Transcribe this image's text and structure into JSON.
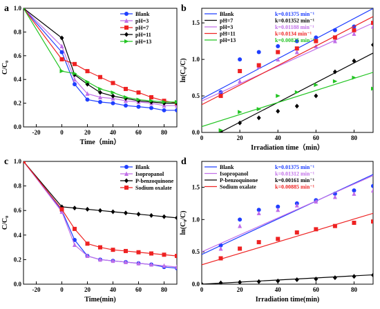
{
  "chart_data": [
    {
      "panel": "a",
      "type": "line",
      "xlabel": "Time（min）",
      "ylabel": "C/C₀",
      "xlim": [
        -30,
        90
      ],
      "ylim": [
        0,
        1.0
      ],
      "xticks": [
        -20,
        0,
        20,
        40,
        60,
        80
      ],
      "yticks": [
        0.0,
        0.2,
        0.4,
        0.6,
        0.8,
        1.0
      ],
      "xtick_labels": [
        "-20",
        "0",
        "20",
        "40",
        "60",
        "80"
      ],
      "ytick_labels": [
        "0.0",
        "0.2",
        "0.4",
        "0.6",
        "0.8",
        "1.0"
      ],
      "legend_position": "top-right",
      "series": [
        {
          "name": "Blank",
          "color": "#1f3fff",
          "marker": "circle",
          "x": [
            -30,
            0,
            10,
            20,
            30,
            40,
            50,
            60,
            70,
            80,
            90
          ],
          "y": [
            1.0,
            0.63,
            0.36,
            0.23,
            0.21,
            0.2,
            0.18,
            0.17,
            0.16,
            0.14,
            0.14
          ]
        },
        {
          "name": "pH=3",
          "color": "#c06ee8",
          "marker": "triangle",
          "x": [
            -30,
            0,
            10,
            20,
            30,
            40,
            50,
            60,
            70,
            80,
            90
          ],
          "y": [
            1.0,
            0.68,
            0.4,
            0.28,
            0.25,
            0.24,
            0.22,
            0.21,
            0.2,
            0.18,
            0.18
          ]
        },
        {
          "name": "pH=7",
          "color": "#ee2222",
          "marker": "square",
          "x": [
            -30,
            0,
            10,
            20,
            30,
            40,
            50,
            60,
            70,
            80,
            90
          ],
          "y": [
            1.0,
            0.57,
            0.53,
            0.47,
            0.42,
            0.37,
            0.32,
            0.29,
            0.25,
            0.22,
            0.2
          ]
        },
        {
          "name": "pH=11",
          "color": "#000000",
          "marker": "diamond",
          "x": [
            -30,
            0,
            10,
            20,
            30,
            40,
            50,
            60,
            70,
            80,
            90
          ],
          "y": [
            1.0,
            0.75,
            0.44,
            0.36,
            0.29,
            0.26,
            0.24,
            0.22,
            0.21,
            0.2,
            0.2
          ]
        },
        {
          "name": "pH=13",
          "color": "#22c422",
          "marker": "triangle-right",
          "x": [
            -30,
            0,
            10,
            20,
            30,
            40,
            50,
            60,
            70,
            80,
            90
          ],
          "y": [
            1.0,
            0.47,
            0.45,
            0.38,
            0.32,
            0.29,
            0.25,
            0.23,
            0.22,
            0.21,
            0.21
          ]
        }
      ]
    },
    {
      "panel": "b",
      "type": "scatter",
      "xlabel": "Irradiation time（min）",
      "ylabel": "ln(C₀/C)",
      "xlim": [
        0,
        90
      ],
      "ylim": [
        0,
        1.7
      ],
      "xticks": [
        0,
        20,
        40,
        60,
        80
      ],
      "yticks": [
        0.0,
        0.5,
        1.0,
        1.5
      ],
      "xtick_labels": [
        "0",
        "20",
        "40",
        "60",
        "80"
      ],
      "ytick_labels": [
        "0.0",
        "0.5",
        "1.0",
        "1.5"
      ],
      "legend_position": "top-left",
      "series": [
        {
          "name": "Blank",
          "color": "#1f3fff",
          "marker": "circle",
          "k_label": "k=0.01375 min⁻¹",
          "x": [
            10,
            20,
            30,
            40,
            50,
            60,
            70,
            80,
            90
          ],
          "y": [
            0.55,
            1.0,
            1.1,
            1.18,
            1.25,
            1.3,
            1.4,
            1.45,
            1.5
          ],
          "fit": [
            0.46,
            0.01375
          ]
        },
        {
          "name": "pH=7",
          "color": "#000000",
          "marker": "diamond",
          "k_label": "k=0.01352 min⁻¹",
          "x": [
            10,
            20,
            30,
            40,
            50,
            60,
            70,
            80,
            90
          ],
          "y": [
            0.01,
            0.13,
            0.2,
            0.29,
            0.36,
            0.5,
            0.83,
            0.98,
            1.2
          ],
          "fit": [
            -0.13,
            0.01352
          ]
        },
        {
          "name": "pH=3",
          "color": "#c06ee8",
          "marker": "triangle",
          "k_label": "k=0.01188 min⁻¹",
          "x": [
            10,
            20,
            30,
            40,
            50,
            60,
            70,
            80,
            90
          ],
          "y": [
            0.5,
            0.7,
            0.9,
            1.0,
            1.1,
            1.18,
            1.25,
            1.35,
            1.45
          ],
          "fit": [
            0.43,
            0.01188
          ]
        },
        {
          "name": "pH=11",
          "color": "#ee2222",
          "marker": "square",
          "k_label": "k=0.0134 min⁻¹",
          "x": [
            10,
            20,
            30,
            40,
            50,
            60,
            70,
            80,
            90
          ],
          "y": [
            0.5,
            0.84,
            0.92,
            1.1,
            1.15,
            1.25,
            1.3,
            1.4,
            1.5
          ],
          "fit": [
            0.38,
            0.0134
          ]
        },
        {
          "name": "pH=13",
          "color": "#22c422",
          "marker": "triangle-right",
          "k_label": "k=0.00825 min⁻¹",
          "x": [
            10,
            20,
            30,
            40,
            50,
            60,
            70,
            80,
            90
          ],
          "y": [
            0.03,
            0.28,
            0.32,
            0.5,
            0.55,
            0.65,
            0.7,
            0.75,
            0.6
          ],
          "fit": [
            0.08,
            0.00825
          ]
        }
      ]
    },
    {
      "panel": "c",
      "type": "line",
      "xlabel": "Time(min)",
      "ylabel": "C/C₀",
      "xlim": [
        -30,
        90
      ],
      "ylim": [
        0,
        1.0
      ],
      "xticks": [
        -20,
        0,
        20,
        40,
        60,
        80
      ],
      "yticks": [
        0.0,
        0.2,
        0.4,
        0.6,
        0.8,
        1.0
      ],
      "xtick_labels": [
        "-20",
        "0",
        "20",
        "40",
        "60",
        "80"
      ],
      "ytick_labels": [
        "0.0",
        "0.2",
        "0.4",
        "0.6",
        "0.8",
        "1.0"
      ],
      "legend_position": "top-right",
      "series": [
        {
          "name": "Blank",
          "color": "#1f3fff",
          "marker": "circle",
          "x": [
            -30,
            0,
            10,
            20,
            30,
            40,
            50,
            60,
            70,
            80,
            90
          ],
          "y": [
            1.0,
            0.6,
            0.36,
            0.23,
            0.2,
            0.19,
            0.18,
            0.17,
            0.16,
            0.14,
            0.13
          ]
        },
        {
          "name": "Isopropanol",
          "color": "#c06ee8",
          "marker": "triangle",
          "x": [
            -30,
            0,
            10,
            20,
            30,
            40,
            50,
            60,
            70,
            80,
            90
          ],
          "y": [
            1.0,
            0.59,
            0.32,
            0.23,
            0.2,
            0.19,
            0.18,
            0.17,
            0.16,
            0.15,
            0.14
          ]
        },
        {
          "name": "P-benzoquinone",
          "color": "#000000",
          "marker": "diamond",
          "x": [
            -30,
            0,
            10,
            20,
            30,
            40,
            50,
            60,
            70,
            80,
            90
          ],
          "y": [
            1.0,
            0.63,
            0.62,
            0.61,
            0.6,
            0.59,
            0.58,
            0.57,
            0.56,
            0.55,
            0.54
          ]
        },
        {
          "name": "Sodium oxalate",
          "color": "#ee2222",
          "marker": "square",
          "x": [
            -30,
            0,
            10,
            20,
            30,
            40,
            50,
            60,
            70,
            80,
            90
          ],
          "y": [
            1.0,
            0.61,
            0.45,
            0.33,
            0.3,
            0.28,
            0.27,
            0.26,
            0.25,
            0.24,
            0.23
          ]
        }
      ]
    },
    {
      "panel": "d",
      "type": "scatter",
      "xlabel": "Irradiation time(min)",
      "ylabel": "ln(C₀/C)",
      "xlim": [
        0,
        90
      ],
      "ylim": [
        0,
        1.9
      ],
      "xticks": [
        0,
        20,
        40,
        60,
        80
      ],
      "yticks": [
        0.0,
        0.5,
        1.0,
        1.5
      ],
      "xtick_labels": [
        "0",
        "20",
        "40",
        "60",
        "80"
      ],
      "ytick_labels": [
        "0.0",
        "0.5",
        "1.0",
        "1.5"
      ],
      "legend_position": "top-left",
      "series": [
        {
          "name": "Blank",
          "color": "#1f3fff",
          "marker": "circle",
          "k_label": "k=0.01375 min⁻¹",
          "x": [
            10,
            20,
            30,
            40,
            50,
            60,
            70,
            80,
            90
          ],
          "y": [
            0.6,
            1.0,
            1.15,
            1.2,
            1.25,
            1.3,
            1.4,
            1.45,
            1.52
          ],
          "fit": [
            0.46,
            0.01375
          ]
        },
        {
          "name": "Isopropanol",
          "color": "#c06ee8",
          "marker": "triangle",
          "k_label": "k=0.01312 min⁻¹",
          "x": [
            10,
            20,
            30,
            40,
            50,
            60,
            70,
            80,
            90
          ],
          "y": [
            0.55,
            0.9,
            1.1,
            1.15,
            1.22,
            1.28,
            1.35,
            1.4,
            1.45
          ],
          "fit": [
            0.5,
            0.01312
          ]
        },
        {
          "name": "P-benzoquinone",
          "color": "#000000",
          "marker": "diamond",
          "k_label": "k=0.00161 min⁻¹",
          "x": [
            0,
            10,
            20,
            30,
            40,
            50,
            60,
            70,
            80,
            90
          ],
          "y": [
            0.0,
            0.02,
            0.03,
            0.04,
            0.05,
            0.07,
            0.08,
            0.1,
            0.12,
            0.14
          ],
          "fit": [
            0.0,
            0.00161
          ]
        },
        {
          "name": "Sodium oxalate",
          "color": "#ee2222",
          "marker": "square",
          "k_label": "k=0.00885 min⁻¹",
          "x": [
            10,
            20,
            30,
            40,
            50,
            60,
            70,
            80,
            90
          ],
          "y": [
            0.4,
            0.55,
            0.65,
            0.7,
            0.8,
            0.85,
            0.9,
            0.95,
            0.97
          ],
          "fit": [
            0.3,
            0.00885
          ]
        }
      ]
    }
  ]
}
